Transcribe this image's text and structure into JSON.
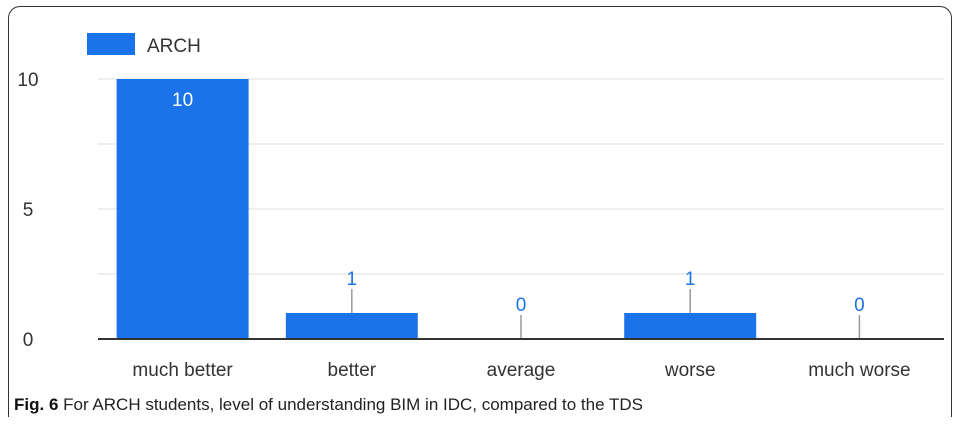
{
  "chart_data": {
    "type": "bar",
    "categories": [
      "much better",
      "better",
      "average",
      "worse",
      "much worse"
    ],
    "series": [
      {
        "name": "ARCH",
        "values": [
          10,
          1,
          0,
          1,
          0
        ]
      }
    ],
    "data_labels": [
      "10",
      "1",
      "0",
      "1",
      "0"
    ],
    "y_ticks": [
      "0",
      "5",
      "10"
    ],
    "ylim": [
      0,
      10
    ],
    "grid": true,
    "legend": "top-left",
    "colors": {
      "bar": "#1a73e8",
      "label_inside": "#ffffff",
      "label_outside": "#1a73e8",
      "grid": "#dddddd",
      "axis": "#333333"
    }
  },
  "caption": {
    "label": "Fig. 6",
    "text": "For ARCH students, level of understanding BIM in IDC, compared to the TDS"
  }
}
